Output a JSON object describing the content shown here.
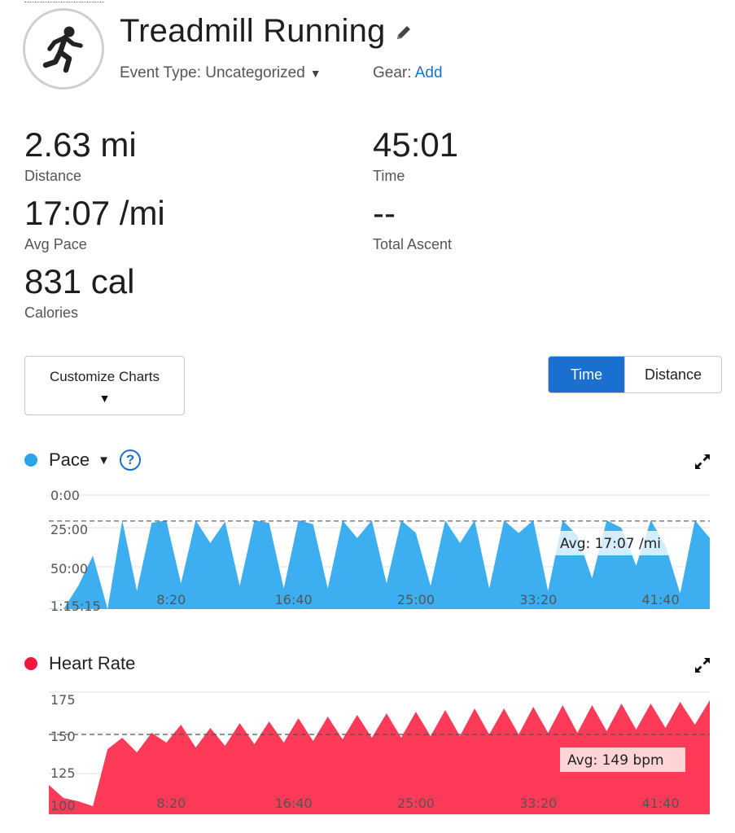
{
  "activity": {
    "title": "Treadmill Running",
    "event_type_label": "Event Type: Uncategorized",
    "gear_label": "Gear: ",
    "gear_link": "Add"
  },
  "stats": {
    "distance": {
      "value": "2.63 mi",
      "label": "Distance"
    },
    "time": {
      "value": "45:01",
      "label": "Time"
    },
    "avg_pace": {
      "value": "17:07 /mi",
      "label": "Avg Pace"
    },
    "total_ascent": {
      "value": "--",
      "label": "Total Ascent"
    },
    "calories": {
      "value": "831 cal",
      "label": "Calories"
    }
  },
  "controls": {
    "customize_label": "Customize Charts",
    "toggle_time": "Time",
    "toggle_distance": "Distance"
  },
  "colors": {
    "accent": "#1a6fcf",
    "pace": "#3daef0",
    "pace_dot": "#2aa3ea",
    "heart_rate": "#fd3a57",
    "heart_dot": "#f2163f"
  },
  "icons": {
    "activity": "running-person-icon",
    "edit": "pencil-icon",
    "dropdown": "caret-down-icon",
    "help": "question-circle-icon",
    "expand": "expand-arrows-icon"
  },
  "chart_data": [
    {
      "type": "area",
      "title": "Pace",
      "x_tick_labels": [
        "8:20",
        "16:40",
        "25:00",
        "33:20",
        "41:40"
      ],
      "y_tick_labels": [
        "0:00",
        "25:00",
        "50:00",
        "1:15:15"
      ],
      "y_axis_inverted": true,
      "ylim_seconds": [
        0,
        4515
      ],
      "xlim_seconds": [
        0,
        2701
      ],
      "avg_label": "Avg: 17:07 /mi",
      "avg_seconds": 1027,
      "grid": true,
      "x_seconds": [
        0,
        60,
        120,
        180,
        240,
        300,
        360,
        420,
        480,
        540,
        600,
        660,
        720,
        780,
        840,
        900,
        960,
        1020,
        1080,
        1140,
        1200,
        1260,
        1320,
        1380,
        1440,
        1500,
        1560,
        1620,
        1680,
        1740,
        1800,
        1860,
        1920,
        1980,
        2040,
        2100,
        2160,
        2220,
        2280,
        2340,
        2400,
        2460,
        2520,
        2580,
        2640,
        2701
      ],
      "y_seconds": [
        4500,
        4515,
        3600,
        2400,
        4515,
        1000,
        3800,
        1100,
        1000,
        3500,
        1000,
        1900,
        1050,
        3600,
        1000,
        1100,
        3700,
        1000,
        1150,
        3700,
        1000,
        1700,
        1000,
        3500,
        1000,
        1500,
        3600,
        1000,
        1900,
        1000,
        3700,
        1000,
        1500,
        1000,
        3800,
        1000,
        1600,
        3300,
        1000,
        1300,
        2800,
        1000,
        2000,
        3900,
        1000,
        1700
      ]
    },
    {
      "type": "area",
      "title": "Heart Rate",
      "x_tick_labels": [
        "8:20",
        "16:40",
        "25:00",
        "33:20",
        "41:40"
      ],
      "y_tick_labels": [
        "100",
        "125",
        "150",
        "175"
      ],
      "ylim": [
        100,
        180
      ],
      "xlim_seconds": [
        0,
        2701
      ],
      "avg_label": "Avg: 149 bpm",
      "avg_value": 149,
      "grid": true,
      "x_seconds": [
        0,
        60,
        120,
        180,
        240,
        300,
        360,
        420,
        480,
        540,
        600,
        660,
        720,
        780,
        840,
        900,
        960,
        1020,
        1080,
        1140,
        1200,
        1260,
        1320,
        1380,
        1440,
        1500,
        1560,
        1620,
        1680,
        1740,
        1800,
        1860,
        1920,
        1980,
        2040,
        2100,
        2160,
        2220,
        2280,
        2340,
        2400,
        2460,
        2520,
        2580,
        2640,
        2701
      ],
      "values": [
        118,
        110,
        108,
        105,
        140,
        147,
        138,
        150,
        144,
        155,
        141,
        153,
        142,
        156,
        143,
        157,
        144,
        159,
        145,
        160,
        146,
        161,
        147,
        162,
        147,
        163,
        148,
        164,
        148,
        165,
        149,
        165,
        149,
        166,
        150,
        167,
        150,
        167,
        151,
        168,
        152,
        168,
        153,
        169,
        155,
        170
      ]
    }
  ]
}
